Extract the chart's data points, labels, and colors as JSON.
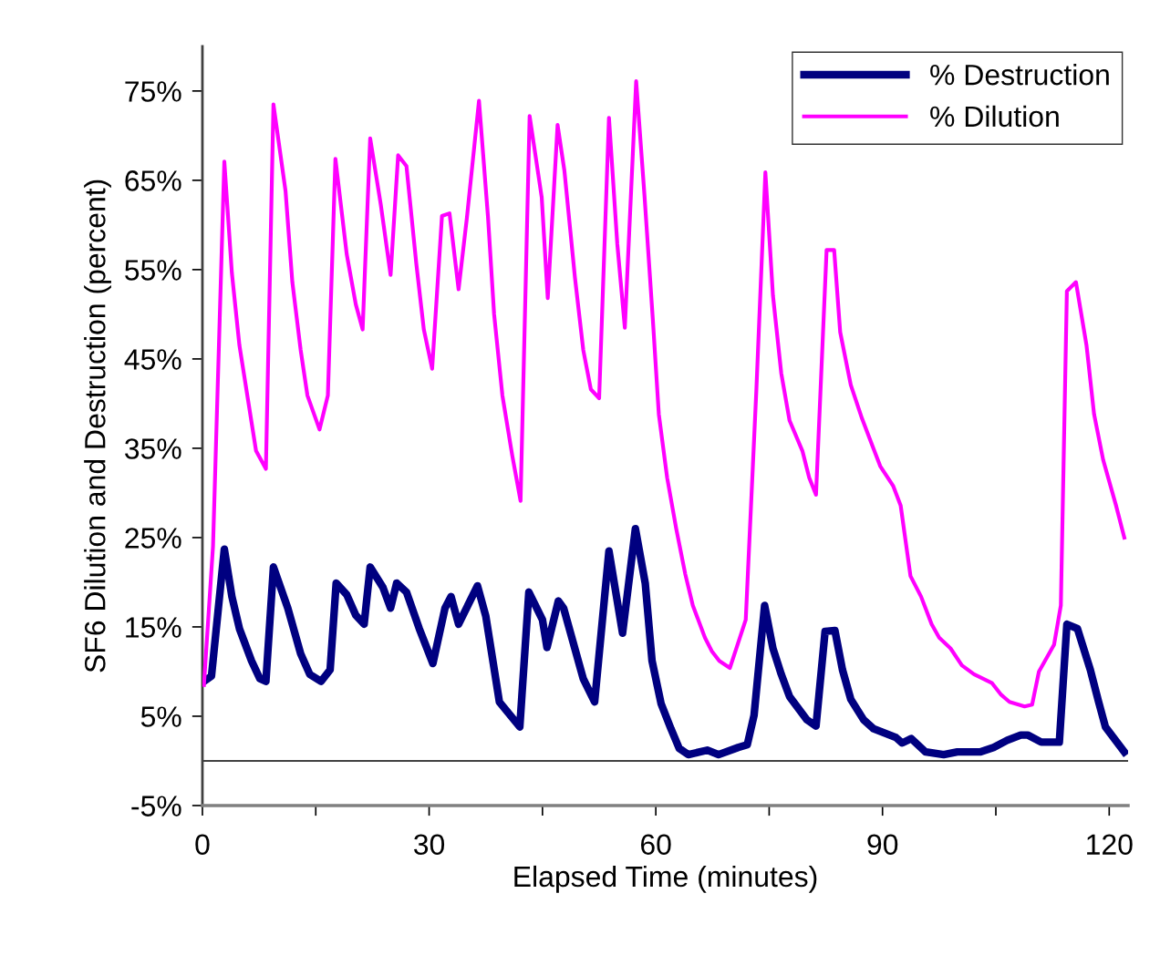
{
  "chart_data": {
    "type": "line",
    "xlabel": "Elapsed Time (minutes)",
    "ylabel": "SF6 Dilution and Destruction (percent)",
    "xlim": [
      0,
      122.5
    ],
    "xticks": [
      0,
      {
        "value": 15,
        "label": null
      },
      30,
      {
        "value": 45,
        "label": null
      },
      60,
      {
        "value": 75,
        "label": null
      },
      90,
      {
        "value": 105,
        "label": null
      },
      120
    ],
    "ylim": [
      -5,
      80
    ],
    "yticks": [
      {
        "value": -5,
        "label": "-5%"
      },
      {
        "value": 5,
        "label": "5%"
      },
      {
        "value": 15,
        "label": "15%"
      },
      {
        "value": 25,
        "label": "25%"
      },
      {
        "value": 35,
        "label": "35%"
      },
      {
        "value": 45,
        "label": "45%"
      },
      {
        "value": 55,
        "label": "55%"
      },
      {
        "value": 65,
        "label": "65%"
      },
      {
        "value": 75,
        "label": "75%"
      }
    ],
    "ref_lines": [
      {
        "axis": "y",
        "value": 0,
        "label": null,
        "color": "#000000"
      }
    ],
    "grid": false,
    "legend": "top right",
    "marker": "none",
    "series": [
      {
        "name": "% Destruction",
        "color": "#000080",
        "line_style": "solid",
        "x": [
          0.2,
          1.2,
          2.9,
          3.9,
          4.9,
          6.5,
          7.6,
          8.4,
          9.4,
          11.3,
          13.0,
          14.2,
          15.7,
          16.9,
          17.7,
          19.1,
          20.3,
          21.4,
          22.2,
          23.9,
          24.9,
          25.7,
          27.0,
          28.7,
          30.5,
          32.1,
          32.9,
          33.9,
          36.4,
          37.5,
          39.3,
          42.0,
          43.2,
          45.0,
          45.6,
          47.1,
          47.8,
          50.4,
          51.9,
          53.8,
          55.6,
          57.3,
          58.6,
          59.5,
          60.7,
          62.0,
          63.1,
          64.3,
          66.8,
          68.3,
          70.9,
          72.1,
          73.0,
          74.4,
          75.5,
          76.6,
          77.7,
          80.0,
          81.2,
          82.4,
          83.7,
          84.7,
          85.8,
          87.5,
          88.8,
          91.8,
          92.6,
          93.8,
          95.7,
          98.1,
          99.9,
          102.9,
          104.7,
          106.5,
          108.3,
          109.2,
          111.0,
          113.4,
          114.4,
          115.8,
          117.5,
          118.6,
          119.5,
          122.0
        ],
        "values": [
          8.9,
          9.5,
          23.7,
          18.4,
          14.8,
          11.2,
          9.2,
          8.9,
          21.7,
          17.1,
          12.0,
          9.7,
          8.9,
          10.2,
          19.9,
          18.6,
          16.3,
          15.3,
          21.7,
          19.4,
          17.1,
          19.9,
          18.9,
          14.8,
          10.9,
          17.1,
          18.4,
          15.3,
          19.6,
          16.2,
          6.6,
          3.8,
          18.9,
          15.8,
          12.7,
          17.9,
          17.1,
          9.2,
          6.6,
          23.5,
          14.3,
          26.0,
          19.9,
          11.2,
          6.4,
          3.6,
          1.4,
          0.7,
          1.2,
          0.7,
          1.5,
          1.8,
          5.1,
          17.4,
          12.6,
          9.7,
          7.2,
          4.6,
          3.9,
          14.5,
          14.6,
          10.2,
          6.9,
          4.6,
          3.6,
          2.6,
          2.0,
          2.5,
          1.0,
          0.7,
          1.0,
          1.0,
          1.5,
          2.3,
          2.9,
          2.9,
          2.1,
          2.1,
          15.3,
          14.8,
          10.2,
          6.6,
          3.8,
          1.0
        ]
      },
      {
        "name": "% Dilution",
        "color": "#ff00ff",
        "line_style": "solid",
        "x": [
          0.2,
          1.4,
          2.9,
          3.9,
          4.9,
          7.1,
          8.4,
          9.4,
          11.0,
          11.9,
          13.0,
          13.9,
          15.5,
          16.6,
          17.6,
          19.1,
          20.3,
          21.2,
          22.2,
          23.6,
          24.9,
          25.9,
          27.0,
          28.3,
          29.3,
          30.4,
          31.7,
          32.7,
          33.9,
          35.0,
          36.6,
          37.8,
          38.6,
          39.7,
          41.0,
          42.1,
          43.3,
          44.9,
          45.7,
          47.0,
          47.9,
          49.3,
          50.4,
          51.4,
          52.5,
          53.8,
          54.9,
          55.9,
          57.4,
          58.5,
          59.6,
          60.4,
          61.5,
          62.7,
          63.9,
          64.9,
          66.5,
          67.4,
          68.4,
          69.8,
          71.9,
          73.3,
          74.5,
          75.5,
          76.6,
          77.7,
          79.4,
          80.3,
          81.2,
          82.6,
          83.6,
          84.4,
          85.8,
          87.3,
          88.7,
          89.7,
          91.4,
          92.4,
          93.7,
          95.1,
          96.5,
          97.5,
          99.0,
          100.5,
          102.1,
          104.5,
          105.7,
          106.8,
          108.8,
          109.8,
          110.7,
          112.7,
          113.6,
          114.4,
          115.6,
          117.0,
          118.0,
          119.2,
          120.9,
          122.0
        ],
        "values": [
          8.5,
          24.0,
          67.1,
          54.6,
          46.5,
          34.7,
          32.7,
          73.5,
          63.8,
          53.6,
          46.0,
          40.9,
          37.1,
          40.9,
          67.4,
          56.7,
          51.1,
          48.3,
          69.7,
          62.3,
          54.4,
          67.8,
          66.6,
          55.7,
          48.3,
          43.9,
          61.0,
          61.3,
          52.8,
          60.8,
          73.9,
          60.8,
          50.0,
          40.9,
          34.2,
          29.1,
          72.2,
          63.1,
          51.8,
          71.2,
          66.1,
          54.1,
          46.0,
          41.6,
          40.6,
          72.0,
          57.9,
          48.5,
          76.1,
          63.3,
          49.5,
          38.8,
          31.7,
          26.0,
          20.9,
          17.4,
          13.8,
          12.3,
          11.2,
          10.4,
          15.8,
          41.4,
          65.9,
          52.1,
          43.4,
          38.1,
          34.7,
          31.7,
          29.8,
          57.2,
          57.2,
          48.0,
          42.1,
          38.3,
          35.2,
          33.0,
          30.8,
          28.6,
          20.7,
          18.4,
          15.3,
          13.8,
          12.6,
          10.7,
          9.7,
          8.7,
          7.4,
          6.6,
          6.1,
          6.3,
          10.0,
          13.0,
          17.4,
          52.6,
          53.6,
          46.5,
          38.8,
          33.7,
          28.6,
          25.0
        ]
      }
    ]
  }
}
